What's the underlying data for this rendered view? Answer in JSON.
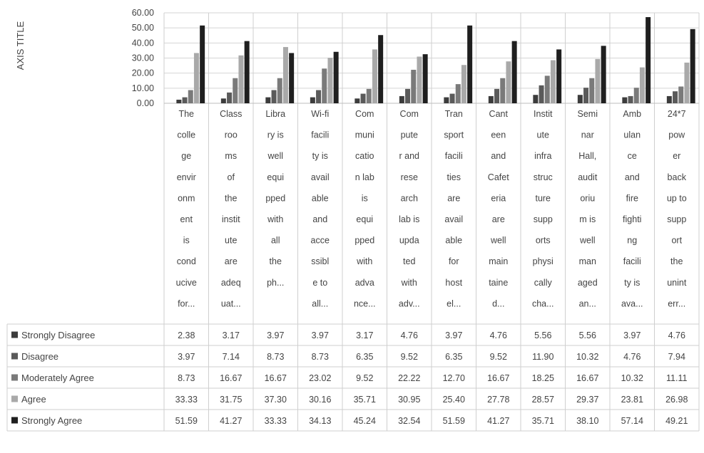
{
  "chart_data": {
    "type": "bar",
    "ylabel": "AXIS TITLE",
    "ylim": [
      0,
      60
    ],
    "yticks": [
      "60.00",
      "50.00",
      "40.00",
      "30.00",
      "20.00",
      "10.00",
      "0.00"
    ],
    "grid": true,
    "legend": "data-table",
    "categories": [
      [
        "The",
        "colle",
        "ge",
        "envir",
        "onm",
        "ent",
        "is",
        "cond",
        "ucive",
        "for..."
      ],
      [
        "Class",
        "roo",
        "ms",
        "of",
        "the",
        "instit",
        "ute",
        "are",
        "adeq",
        "uat..."
      ],
      [
        "Libra",
        "ry is",
        "well",
        "equi",
        "pped",
        "with",
        "all",
        "the",
        "ph..."
      ],
      [
        "Wi-fi",
        "facili",
        "ty is",
        "avail",
        "able",
        "and",
        "acce",
        "ssibl",
        "e to",
        "all..."
      ],
      [
        "Com",
        "muni",
        "catio",
        "n lab",
        "is",
        "equi",
        "pped",
        "with",
        "adva",
        "nce..."
      ],
      [
        "Com",
        "pute",
        "r and",
        "rese",
        "arch",
        "lab is",
        "upda",
        "ted",
        "with",
        "adv..."
      ],
      [
        "Tran",
        "sport",
        "facili",
        "ties",
        "are",
        "avail",
        "able",
        "for",
        "host",
        "el..."
      ],
      [
        "Cant",
        "een",
        "and",
        "Cafet",
        "eria",
        "are",
        "well",
        "main",
        "taine",
        "d..."
      ],
      [
        "Instit",
        "ute",
        "infra",
        "struc",
        "ture",
        "supp",
        "orts",
        "physi",
        "cally",
        "cha..."
      ],
      [
        "Semi",
        "nar",
        "Hall,",
        "audit",
        "oriu",
        "m is",
        "well",
        "man",
        "aged",
        "an..."
      ],
      [
        "Amb",
        "ulan",
        "ce",
        "and",
        "fire",
        "fighti",
        "ng",
        "facili",
        "ty is",
        "ava..."
      ],
      [
        "24*7",
        "pow",
        "er",
        "back",
        "up to",
        "supp",
        "ort",
        "the",
        "unint",
        "err..."
      ]
    ],
    "series": [
      {
        "name": "Strongly Disagree",
        "color": "#3c3c3c",
        "values": [
          2.38,
          3.17,
          3.97,
          3.97,
          3.17,
          4.76,
          3.97,
          4.76,
          5.56,
          5.56,
          3.97,
          4.76
        ],
        "labels": [
          "2.38",
          "3.17",
          "3.97",
          "3.97",
          "3.17",
          "4.76",
          "3.97",
          "4.76",
          "5.56",
          "5.56",
          "3.97",
          "4.76"
        ]
      },
      {
        "name": "Disagree",
        "color": "#5a5a5a",
        "values": [
          3.97,
          7.14,
          8.73,
          8.73,
          6.35,
          9.52,
          6.35,
          9.52,
          11.9,
          10.32,
          4.76,
          7.94
        ],
        "labels": [
          "3.97",
          "7.14",
          "8.73",
          "8.73",
          "6.35",
          "9.52",
          "6.35",
          "9.52",
          "11.90",
          "10.32",
          "4.76",
          "7.94"
        ]
      },
      {
        "name": "Moderately Agree",
        "color": "#7a7a7a",
        "values": [
          8.73,
          16.67,
          16.67,
          23.02,
          9.52,
          22.22,
          12.7,
          16.67,
          18.25,
          16.67,
          10.32,
          11.11
        ],
        "labels": [
          "8.73",
          "16.67",
          "16.67",
          "23.02",
          "9.52",
          "22.22",
          "12.70",
          "16.67",
          "18.25",
          "16.67",
          "10.32",
          "11.11"
        ]
      },
      {
        "name": "Agree",
        "color": "#a9a9a9",
        "values": [
          33.33,
          31.75,
          37.3,
          30.16,
          35.71,
          30.95,
          25.4,
          27.78,
          28.57,
          29.37,
          23.81,
          26.98
        ],
        "labels": [
          "33.33",
          "31.75",
          "37.30",
          "30.16",
          "35.71",
          "30.95",
          "25.40",
          "27.78",
          "28.57",
          "29.37",
          "23.81",
          "26.98"
        ]
      },
      {
        "name": "Strongly Agree",
        "color": "#1f1f1f",
        "values": [
          51.59,
          41.27,
          33.33,
          34.13,
          45.24,
          32.54,
          51.59,
          41.27,
          35.71,
          38.1,
          57.14,
          49.21
        ],
        "labels": [
          "51.59",
          "41.27",
          "33.33",
          "34.13",
          "45.24",
          "32.54",
          "51.59",
          "41.27",
          "35.71",
          "38.10",
          "57.14",
          "49.21"
        ]
      }
    ]
  }
}
